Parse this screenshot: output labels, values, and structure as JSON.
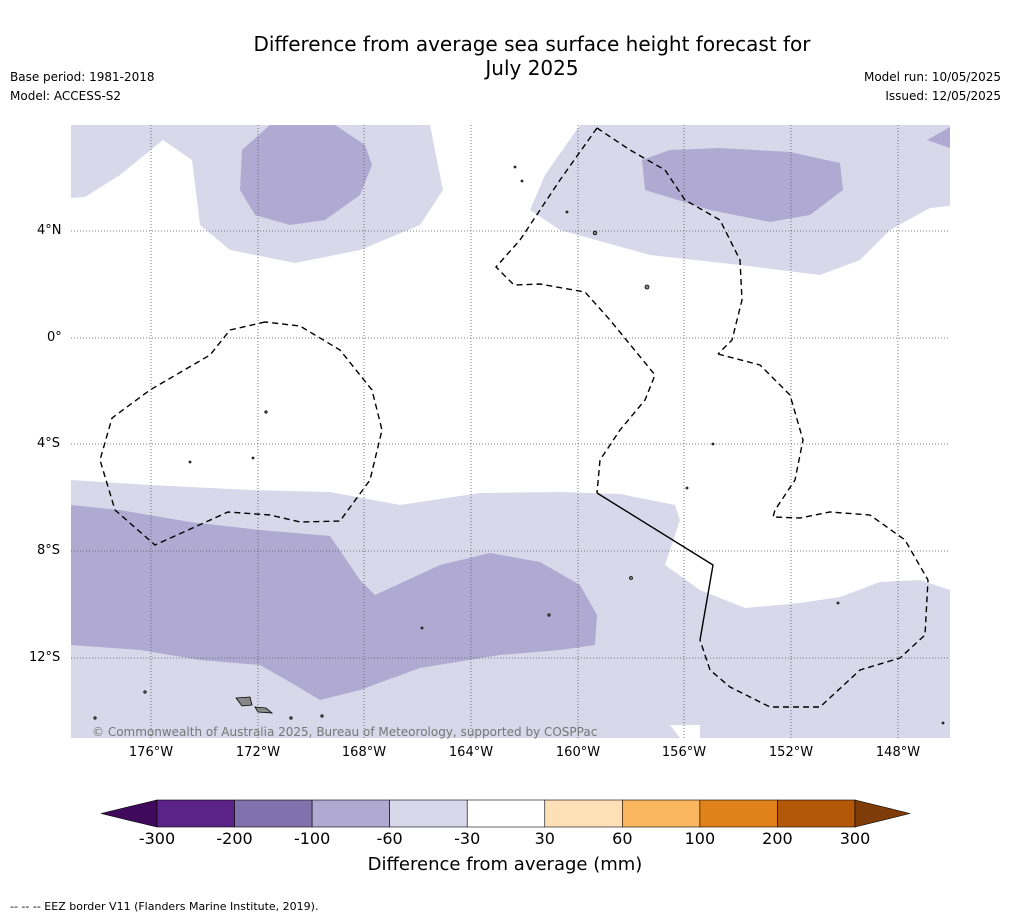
{
  "title_line1": "Difference from average sea surface height forecast for",
  "title_line2": "July 2025",
  "base_period": "Base period: 1981-2018",
  "model": "Model: ACCESS-S2",
  "model_run": "Model run: 10/05/2025",
  "issued": "Issued: 12/05/2025",
  "lat_labels": [
    "4°N",
    "0°",
    "4°S",
    "8°S",
    "12°S"
  ],
  "lon_labels": [
    "176°W",
    "172°W",
    "168°W",
    "164°W",
    "160°W",
    "156°W",
    "152°W",
    "148°W"
  ],
  "copyright": "© Commonwealth of Australia 2025, Bureau of Meteorology, supported by COSPPac",
  "colorbar": {
    "ticks": [
      "-300",
      "-200",
      "-100",
      "-60",
      "-30",
      "30",
      "60",
      "100",
      "200",
      "300"
    ],
    "colors": [
      "#3f0a5c",
      "#5b2287",
      "#8172ae",
      "#b0aad2",
      "#d8d8ea",
      "#ffffff",
      "#fee0b6",
      "#f9b65e",
      "#e0811a",
      "#b35806",
      "#7f3b08"
    ],
    "label": "Difference from average (mm)"
  },
  "footnote": "-- -- -- EEZ border V11 (Flanders Marine Institute, 2019)."
}
